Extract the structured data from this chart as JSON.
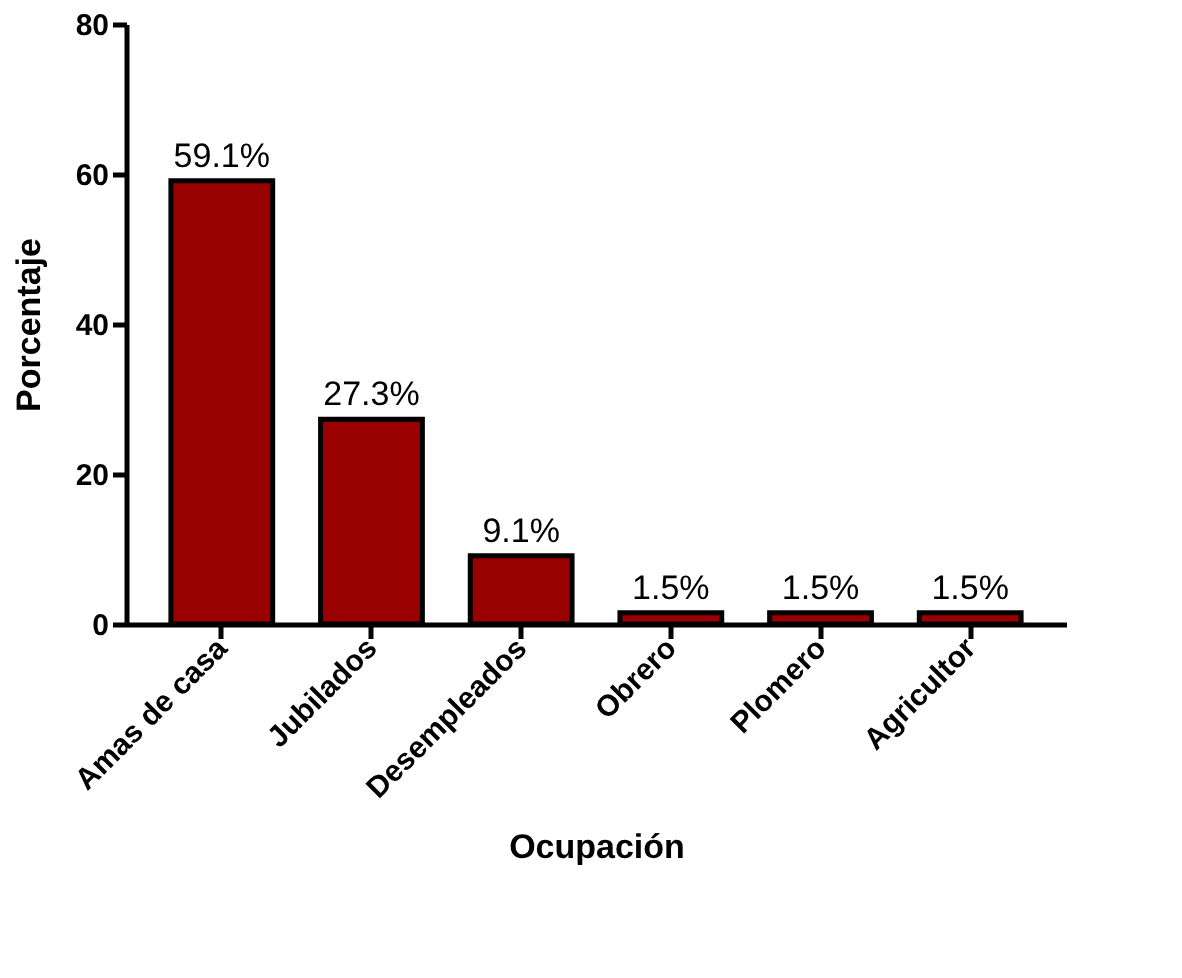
{
  "chart_data": {
    "type": "bar",
    "xlabel": "Ocupación",
    "ylabel": "Porcentaje",
    "categories": [
      "Amas de casa",
      "Jubilados",
      "Desempleados",
      "Obrero",
      "Plomero",
      "Agricultor"
    ],
    "values": [
      59.1,
      27.3,
      9.1,
      1.5,
      1.5,
      1.5
    ],
    "value_labels": [
      "59.1%",
      "27.3%",
      "9.1%",
      "1.5%",
      "1.5%",
      "1.5%"
    ],
    "color": "#990000",
    "ylim": [
      0,
      80
    ],
    "yticks": [
      0,
      20,
      40,
      60,
      80
    ],
    "grid": false
  }
}
